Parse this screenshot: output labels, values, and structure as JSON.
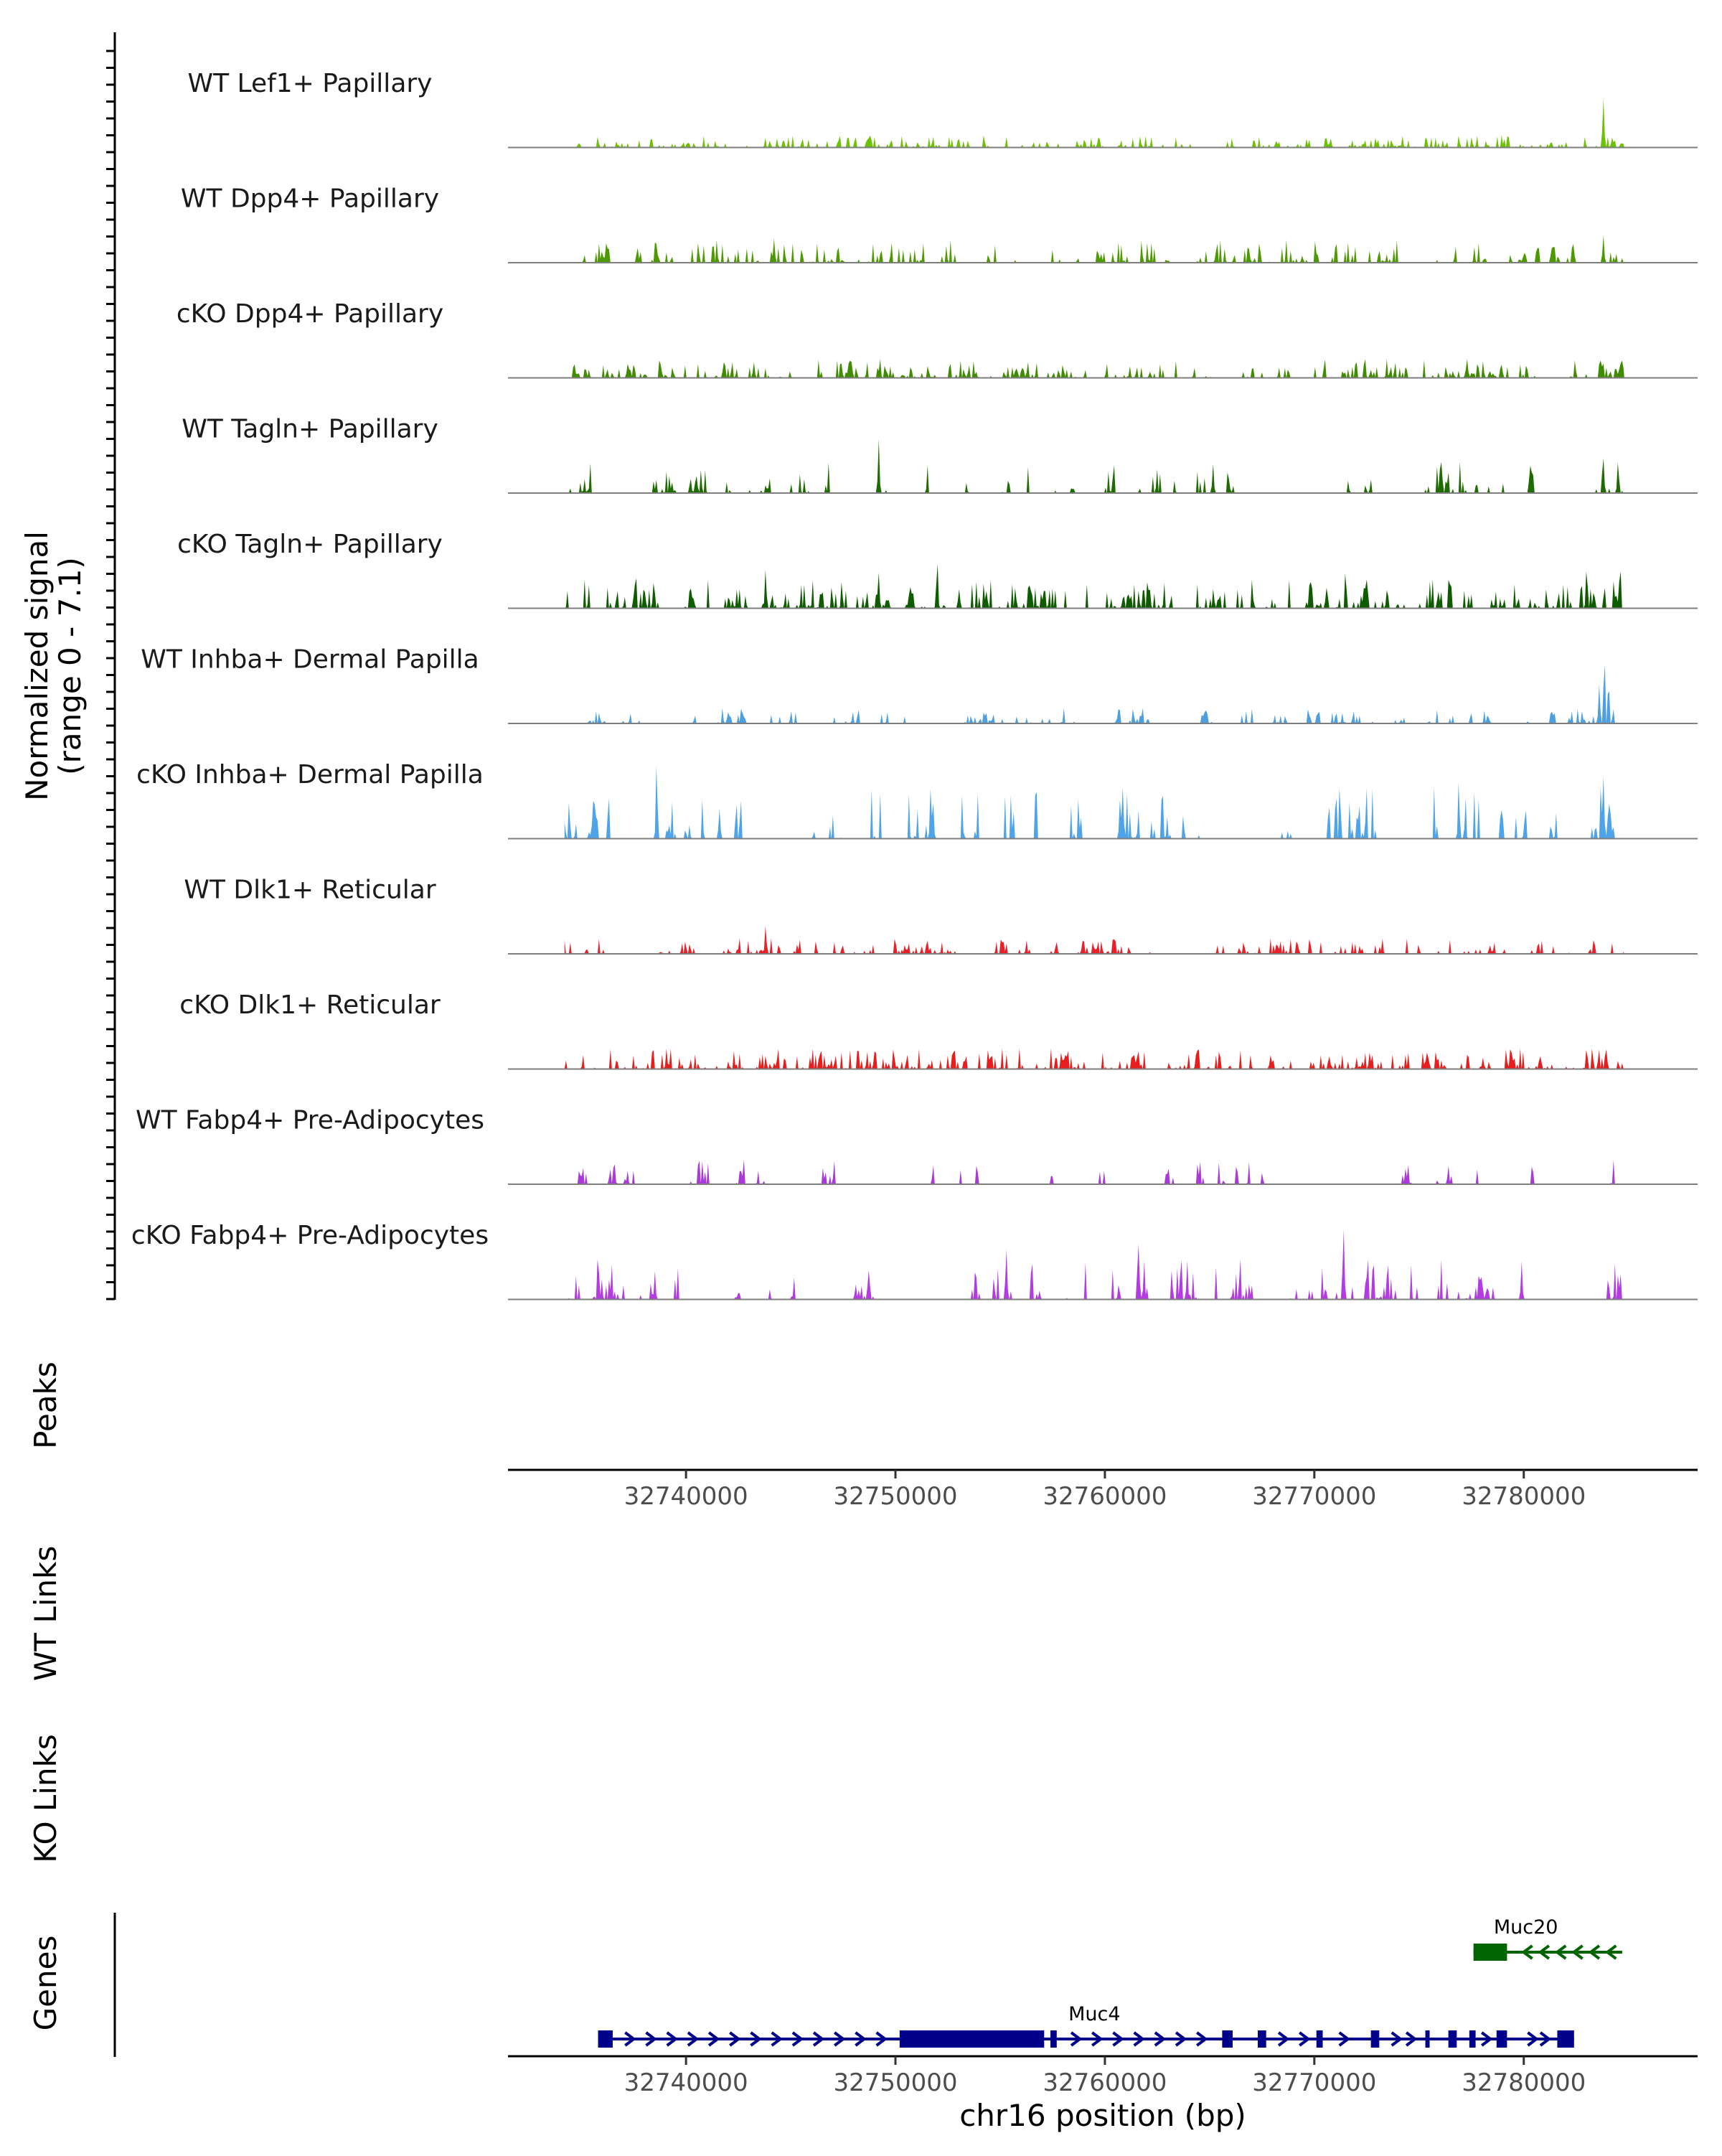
{
  "chart_data": {
    "type": "area",
    "chromosome": "chr16",
    "x_range": [
      32731500,
      32788300
    ],
    "y_range": [
      0,
      7.1
    ],
    "y_axis_title_line1": "Normalized signal",
    "y_axis_title_line2": "(range 0 - 7.1)",
    "x_axis_title": "chr16 position (bp)",
    "x_ticks": [
      32740000,
      32750000,
      32760000,
      32770000,
      32780000
    ],
    "x_tick_labels": [
      "32740000",
      "32750000",
      "32760000",
      "32770000",
      "32780000"
    ],
    "signal_start": 32734200,
    "signal_end": 32784800,
    "tracks": [
      {
        "name": "WT Lef1+ Papillary",
        "color": "#6CC200",
        "density": 0.9,
        "scale": 0.12,
        "peaks": [
          [
            32744000,
            0.1
          ],
          [
            32749800,
            0.1
          ],
          [
            32783800,
            0.62
          ]
        ]
      },
      {
        "name": "WT Dpp4+ Papillary",
        "color": "#4C9A00",
        "density": 0.55,
        "scale": 0.22,
        "peaks": [
          [
            32736200,
            0.25
          ],
          [
            32738600,
            0.25
          ],
          [
            32744200,
            0.3
          ],
          [
            32783800,
            0.3
          ]
        ]
      },
      {
        "name": "cKO Dpp4+ Papillary",
        "color": "#3F8C00",
        "density": 0.75,
        "scale": 0.18,
        "peaks": [
          [
            32749500,
            0.22
          ],
          [
            32777300,
            0.2
          ],
          [
            32784400,
            0.18
          ]
        ]
      },
      {
        "name": "WT Tagln+ Papillary",
        "color": "#1E6B00",
        "density": 0.25,
        "scale": 0.3,
        "peaks": [
          [
            32749200,
            0.55
          ],
          [
            32776000,
            0.28
          ],
          [
            32783800,
            0.5
          ],
          [
            32784500,
            0.4
          ]
        ]
      },
      {
        "name": "cKO Tagln+ Papillary",
        "color": "#0F5C00",
        "density": 0.6,
        "scale": 0.28,
        "peaks": [
          [
            32737600,
            0.55
          ],
          [
            32743800,
            0.45
          ],
          [
            32749200,
            0.5
          ],
          [
            32752000,
            0.55
          ],
          [
            32771500,
            0.5
          ],
          [
            32776500,
            0.45
          ],
          [
            32783000,
            0.6
          ],
          [
            32784600,
            0.6
          ]
        ]
      },
      {
        "name": "WT Inhba+ Dermal Papilla",
        "color": "#4D9FE0",
        "density": 0.3,
        "scale": 0.15,
        "peaks": [
          [
            32783600,
            0.5
          ],
          [
            32783850,
            0.88
          ],
          [
            32784050,
            0.55
          ]
        ]
      },
      {
        "name": "cKO Inhba+ Dermal Papilla",
        "color": "#4FA3E8",
        "density": 0.2,
        "scale": 0.5,
        "peaks": [
          [
            32733700,
            0.45
          ],
          [
            32736300,
            0.6
          ],
          [
            32738600,
            0.88
          ],
          [
            32741600,
            0.45
          ],
          [
            32776900,
            0.68
          ],
          [
            32783800,
            0.88
          ],
          [
            32784100,
            0.72
          ]
        ]
      },
      {
        "name": "WT Dlk1+ Reticular",
        "color": "#E8202A",
        "density": 0.45,
        "scale": 0.15,
        "peaks": [
          [
            32743800,
            0.32
          ],
          [
            32760400,
            0.22
          ]
        ]
      },
      {
        "name": "cKO Dlk1+ Reticular",
        "color": "#E61E1E",
        "density": 0.85,
        "scale": 0.2,
        "peaks": [
          [
            32749000,
            0.25
          ],
          [
            32783000,
            0.28
          ]
        ]
      },
      {
        "name": "WT Fabp4+ Pre-Adipocytes",
        "color": "#A83BD8",
        "density": 0.12,
        "scale": 0.25,
        "peaks": [
          [
            32753900,
            0.3
          ],
          [
            32766300,
            0.32
          ],
          [
            32780400,
            0.28
          ]
        ]
      },
      {
        "name": "cKO Fabp4+ Pre-Adipocytes",
        "color": "#B23CE0",
        "density": 0.2,
        "scale": 0.4,
        "peaks": [
          [
            32755300,
            0.6
          ],
          [
            32756500,
            0.6
          ],
          [
            32761600,
            0.95
          ],
          [
            32771400,
            1.0
          ],
          [
            32779900,
            0.4
          ]
        ]
      }
    ],
    "panels": {
      "peaks": "Peaks",
      "wt_links": "WT Links",
      "ko_links": "KO Links",
      "genes": "Genes"
    },
    "genes": [
      {
        "name": "Muc20",
        "strand": "-",
        "color": "#006400",
        "start": 32777600,
        "end": 32784700,
        "exons": [
          [
            32777600,
            32779200
          ]
        ],
        "arrows": [
          32780200,
          32781000,
          32781800,
          32782600,
          32783400,
          32784200
        ]
      },
      {
        "name": "Muc4",
        "strand": "+",
        "color": "#00008B",
        "start": 32735800,
        "end": 32782400,
        "exons": [
          [
            32735800,
            32736500
          ],
          [
            32750200,
            32757100
          ],
          [
            32757400,
            32757700
          ],
          [
            32765600,
            32766100
          ],
          [
            32767300,
            32767700
          ],
          [
            32770100,
            32770400
          ],
          [
            32772700,
            32773100
          ],
          [
            32775300,
            32775500
          ],
          [
            32776400,
            32776800
          ],
          [
            32777400,
            32777700
          ],
          [
            32778700,
            32779200
          ],
          [
            32781600,
            32782400
          ]
        ],
        "arrows": [
          32737300,
          32738300,
          32739300,
          32740300,
          32741300,
          32742300,
          32743300,
          32744300,
          32745300,
          32746300,
          32747300,
          32748300,
          32749300,
          32758600,
          32759600,
          32760600,
          32761600,
          32762600,
          32763600,
          32764600,
          32768500,
          32769500,
          32771400,
          32773900,
          32774600,
          32778200,
          32780400,
          32781000
        ]
      }
    ]
  }
}
